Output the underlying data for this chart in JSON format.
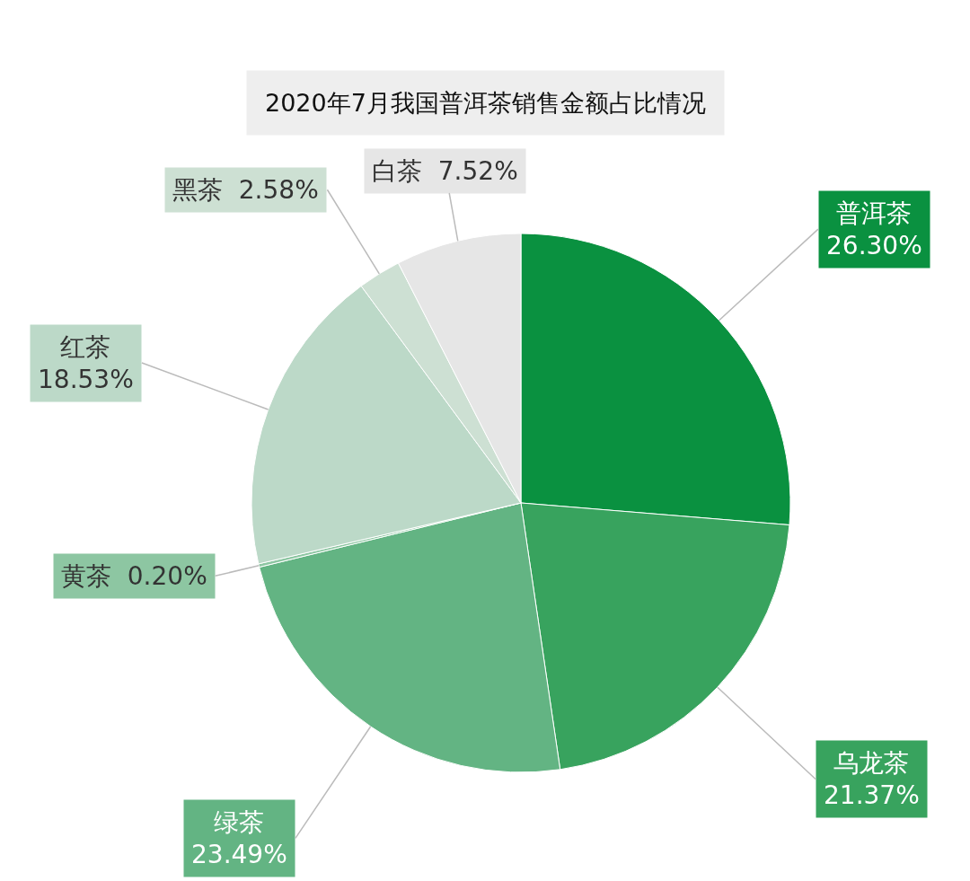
{
  "chart_data": {
    "type": "pie",
    "title": "2020年7月我国普洱茶销售金额占比情况",
    "categories": [
      "普洱茶",
      "乌龙茶",
      "绿茶",
      "黄茶",
      "红茶",
      "黑茶",
      "白茶"
    ],
    "values": [
      26.3,
      21.37,
      23.49,
      0.2,
      18.53,
      2.58,
      7.52
    ],
    "value_labels": [
      "26.30%",
      "21.37%",
      "23.49%",
      "0.20%",
      "18.53%",
      "2.58%",
      "7.52%"
    ],
    "colors": [
      "#0a9140",
      "#38a35e",
      "#63b483",
      "#8dc6a2",
      "#bcd9c8",
      "#cde0d3",
      "#e6e6e6"
    ],
    "legend": false
  }
}
